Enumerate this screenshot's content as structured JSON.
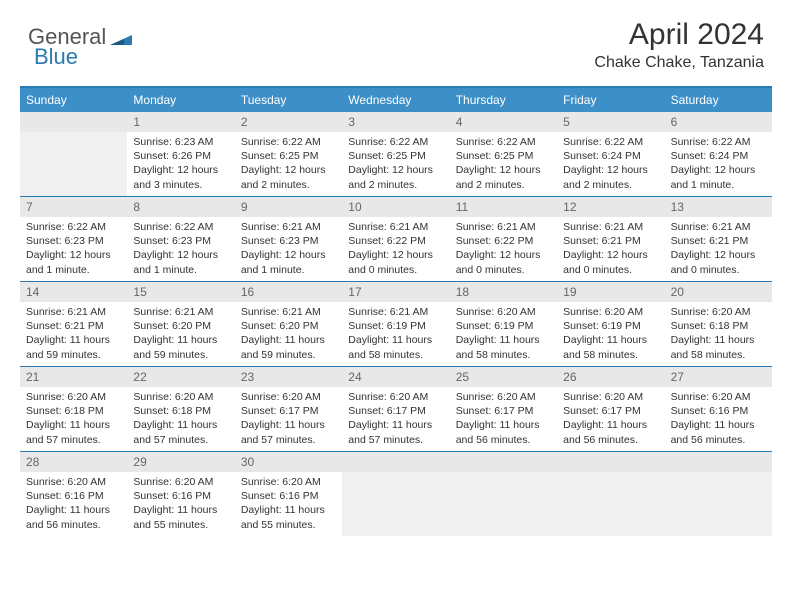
{
  "logo": {
    "text1": "General",
    "text2": "Blue"
  },
  "title": "April 2024",
  "location": "Chake Chake, Tanzania",
  "colors": {
    "header_blue": "#3d8fc7",
    "border_blue": "#2a7ab0",
    "daynum_bg": "#e8e8e8",
    "grey_cell": "#f0f0f0"
  },
  "weekdays": [
    "Sunday",
    "Monday",
    "Tuesday",
    "Wednesday",
    "Thursday",
    "Friday",
    "Saturday"
  ],
  "weeks": [
    [
      {
        "n": "",
        "sr": "",
        "ss": "",
        "dl": "",
        "grey": true
      },
      {
        "n": "1",
        "sr": "Sunrise: 6:23 AM",
        "ss": "Sunset: 6:26 PM",
        "dl": "Daylight: 12 hours and 3 minutes."
      },
      {
        "n": "2",
        "sr": "Sunrise: 6:22 AM",
        "ss": "Sunset: 6:25 PM",
        "dl": "Daylight: 12 hours and 2 minutes."
      },
      {
        "n": "3",
        "sr": "Sunrise: 6:22 AM",
        "ss": "Sunset: 6:25 PM",
        "dl": "Daylight: 12 hours and 2 minutes."
      },
      {
        "n": "4",
        "sr": "Sunrise: 6:22 AM",
        "ss": "Sunset: 6:25 PM",
        "dl": "Daylight: 12 hours and 2 minutes."
      },
      {
        "n": "5",
        "sr": "Sunrise: 6:22 AM",
        "ss": "Sunset: 6:24 PM",
        "dl": "Daylight: 12 hours and 2 minutes."
      },
      {
        "n": "6",
        "sr": "Sunrise: 6:22 AM",
        "ss": "Sunset: 6:24 PM",
        "dl": "Daylight: 12 hours and 1 minute."
      }
    ],
    [
      {
        "n": "7",
        "sr": "Sunrise: 6:22 AM",
        "ss": "Sunset: 6:23 PM",
        "dl": "Daylight: 12 hours and 1 minute."
      },
      {
        "n": "8",
        "sr": "Sunrise: 6:22 AM",
        "ss": "Sunset: 6:23 PM",
        "dl": "Daylight: 12 hours and 1 minute."
      },
      {
        "n": "9",
        "sr": "Sunrise: 6:21 AM",
        "ss": "Sunset: 6:23 PM",
        "dl": "Daylight: 12 hours and 1 minute."
      },
      {
        "n": "10",
        "sr": "Sunrise: 6:21 AM",
        "ss": "Sunset: 6:22 PM",
        "dl": "Daylight: 12 hours and 0 minutes."
      },
      {
        "n": "11",
        "sr": "Sunrise: 6:21 AM",
        "ss": "Sunset: 6:22 PM",
        "dl": "Daylight: 12 hours and 0 minutes."
      },
      {
        "n": "12",
        "sr": "Sunrise: 6:21 AM",
        "ss": "Sunset: 6:21 PM",
        "dl": "Daylight: 12 hours and 0 minutes."
      },
      {
        "n": "13",
        "sr": "Sunrise: 6:21 AM",
        "ss": "Sunset: 6:21 PM",
        "dl": "Daylight: 12 hours and 0 minutes."
      }
    ],
    [
      {
        "n": "14",
        "sr": "Sunrise: 6:21 AM",
        "ss": "Sunset: 6:21 PM",
        "dl": "Daylight: 11 hours and 59 minutes."
      },
      {
        "n": "15",
        "sr": "Sunrise: 6:21 AM",
        "ss": "Sunset: 6:20 PM",
        "dl": "Daylight: 11 hours and 59 minutes."
      },
      {
        "n": "16",
        "sr": "Sunrise: 6:21 AM",
        "ss": "Sunset: 6:20 PM",
        "dl": "Daylight: 11 hours and 59 minutes."
      },
      {
        "n": "17",
        "sr": "Sunrise: 6:21 AM",
        "ss": "Sunset: 6:19 PM",
        "dl": "Daylight: 11 hours and 58 minutes."
      },
      {
        "n": "18",
        "sr": "Sunrise: 6:20 AM",
        "ss": "Sunset: 6:19 PM",
        "dl": "Daylight: 11 hours and 58 minutes."
      },
      {
        "n": "19",
        "sr": "Sunrise: 6:20 AM",
        "ss": "Sunset: 6:19 PM",
        "dl": "Daylight: 11 hours and 58 minutes."
      },
      {
        "n": "20",
        "sr": "Sunrise: 6:20 AM",
        "ss": "Sunset: 6:18 PM",
        "dl": "Daylight: 11 hours and 58 minutes."
      }
    ],
    [
      {
        "n": "21",
        "sr": "Sunrise: 6:20 AM",
        "ss": "Sunset: 6:18 PM",
        "dl": "Daylight: 11 hours and 57 minutes."
      },
      {
        "n": "22",
        "sr": "Sunrise: 6:20 AM",
        "ss": "Sunset: 6:18 PM",
        "dl": "Daylight: 11 hours and 57 minutes."
      },
      {
        "n": "23",
        "sr": "Sunrise: 6:20 AM",
        "ss": "Sunset: 6:17 PM",
        "dl": "Daylight: 11 hours and 57 minutes."
      },
      {
        "n": "24",
        "sr": "Sunrise: 6:20 AM",
        "ss": "Sunset: 6:17 PM",
        "dl": "Daylight: 11 hours and 57 minutes."
      },
      {
        "n": "25",
        "sr": "Sunrise: 6:20 AM",
        "ss": "Sunset: 6:17 PM",
        "dl": "Daylight: 11 hours and 56 minutes."
      },
      {
        "n": "26",
        "sr": "Sunrise: 6:20 AM",
        "ss": "Sunset: 6:17 PM",
        "dl": "Daylight: 11 hours and 56 minutes."
      },
      {
        "n": "27",
        "sr": "Sunrise: 6:20 AM",
        "ss": "Sunset: 6:16 PM",
        "dl": "Daylight: 11 hours and 56 minutes."
      }
    ],
    [
      {
        "n": "28",
        "sr": "Sunrise: 6:20 AM",
        "ss": "Sunset: 6:16 PM",
        "dl": "Daylight: 11 hours and 56 minutes."
      },
      {
        "n": "29",
        "sr": "Sunrise: 6:20 AM",
        "ss": "Sunset: 6:16 PM",
        "dl": "Daylight: 11 hours and 55 minutes."
      },
      {
        "n": "30",
        "sr": "Sunrise: 6:20 AM",
        "ss": "Sunset: 6:16 PM",
        "dl": "Daylight: 11 hours and 55 minutes."
      },
      {
        "n": "",
        "sr": "",
        "ss": "",
        "dl": "",
        "grey": true
      },
      {
        "n": "",
        "sr": "",
        "ss": "",
        "dl": "",
        "grey": true
      },
      {
        "n": "",
        "sr": "",
        "ss": "",
        "dl": "",
        "grey": true
      },
      {
        "n": "",
        "sr": "",
        "ss": "",
        "dl": "",
        "grey": true
      }
    ]
  ]
}
